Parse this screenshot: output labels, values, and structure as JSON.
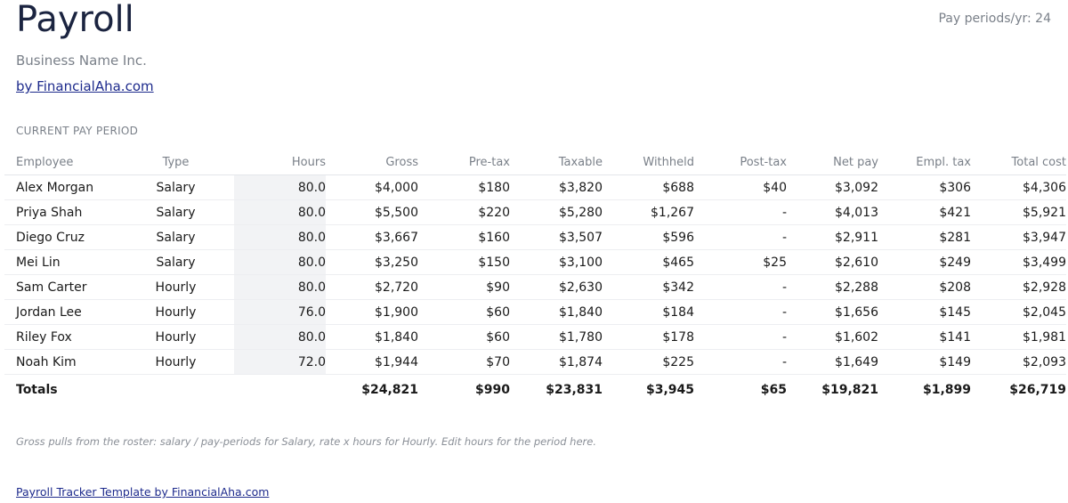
{
  "header": {
    "title": "Payroll",
    "pay_periods": "Pay periods/yr: 24",
    "business_name": "Business Name Inc.",
    "byline": "by FinancialAha.com"
  },
  "section_label": "CURRENT PAY PERIOD",
  "table": {
    "columns": [
      "Employee",
      "Type",
      "Hours",
      "Gross",
      "Pre-tax",
      "Taxable",
      "Withheld",
      "Post-tax",
      "Net pay",
      "Empl. tax",
      "Total cost"
    ],
    "rows": [
      [
        "Alex Morgan",
        "Salary",
        "80.0",
        "$4,000",
        "$180",
        "$3,820",
        "$688",
        "$40",
        "$3,092",
        "$306",
        "$4,306"
      ],
      [
        "Priya Shah",
        "Salary",
        "80.0",
        "$5,500",
        "$220",
        "$5,280",
        "$1,267",
        "-",
        "$4,013",
        "$421",
        "$5,921"
      ],
      [
        "Diego Cruz",
        "Salary",
        "80.0",
        "$3,667",
        "$160",
        "$3,507",
        "$596",
        "-",
        "$2,911",
        "$281",
        "$3,947"
      ],
      [
        "Mei Lin",
        "Salary",
        "80.0",
        "$3,250",
        "$150",
        "$3,100",
        "$465",
        "$25",
        "$2,610",
        "$249",
        "$3,499"
      ],
      [
        "Sam Carter",
        "Hourly",
        "80.0",
        "$2,720",
        "$90",
        "$2,630",
        "$342",
        "-",
        "$2,288",
        "$208",
        "$2,928"
      ],
      [
        "Jordan Lee",
        "Hourly",
        "76.0",
        "$1,900",
        "$60",
        "$1,840",
        "$184",
        "-",
        "$1,656",
        "$145",
        "$2,045"
      ],
      [
        "Riley Fox",
        "Hourly",
        "80.0",
        "$1,840",
        "$60",
        "$1,780",
        "$178",
        "-",
        "$1,602",
        "$141",
        "$1,981"
      ],
      [
        "Noah Kim",
        "Hourly",
        "72.0",
        "$1,944",
        "$70",
        "$1,874",
        "$225",
        "-",
        "$1,649",
        "$149",
        "$2,093"
      ]
    ],
    "totals": [
      "Totals",
      "",
      "",
      "$24,821",
      "$990",
      "$23,831",
      "$3,945",
      "$65",
      "$19,821",
      "$1,899",
      "$26,719"
    ]
  },
  "note": "Gross pulls from the roster: salary / pay-periods for Salary, rate x hours for Hourly. Edit hours for the period here.",
  "footer_link": "Payroll Tracker Template by FinancialAha.com",
  "colors": {
    "title": "#1b2440",
    "link": "#1d2a8c",
    "muted": "#7a8089",
    "hours_cell_bg": "#f2f3f5"
  }
}
